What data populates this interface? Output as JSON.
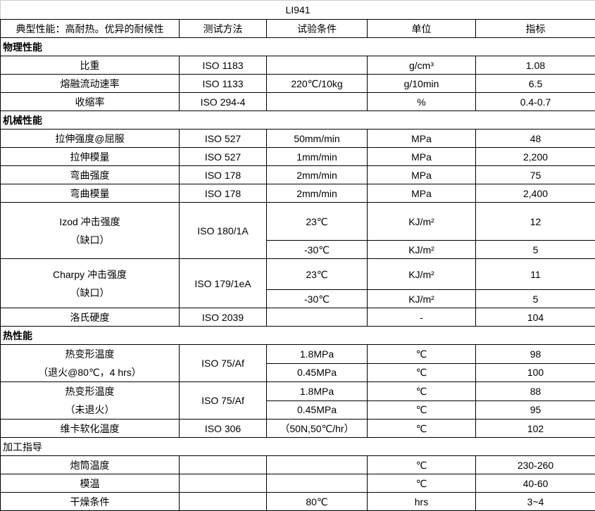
{
  "title": "LI941",
  "header": [
    "典型性能：高耐热。优异的耐候性",
    "测试方法",
    "试验条件",
    "单位",
    "指标"
  ],
  "sections": [
    {
      "name": "物理性能",
      "bold": true,
      "rows": [
        {
          "property": [
            "比重"
          ],
          "method": "ISO 1183",
          "sub": [
            {
              "condition": "",
              "unit": "g/cm³",
              "value": "1.08"
            }
          ]
        },
        {
          "property": [
            "熔融流动速率"
          ],
          "method": "ISO 1133",
          "sub": [
            {
              "condition": "220℃/10kg",
              "unit": "g/10min",
              "value": "6.5"
            }
          ]
        },
        {
          "property": [
            "收缩率"
          ],
          "method": "ISO 294-4",
          "sub": [
            {
              "condition": "",
              "unit": "%",
              "value": "0.4-0.7"
            }
          ]
        }
      ]
    },
    {
      "name": "机械性能",
      "bold": true,
      "rows": [
        {
          "property": [
            "拉伸强度@屈服"
          ],
          "method": "ISO 527",
          "sub": [
            {
              "condition": "50mm/min",
              "unit": "MPa",
              "value": "48"
            }
          ]
        },
        {
          "property": [
            "拉伸模量"
          ],
          "method": "ISO 527",
          "sub": [
            {
              "condition": "1mm/min",
              "unit": "MPa",
              "value": "2,200"
            }
          ]
        },
        {
          "property": [
            "弯曲强度"
          ],
          "method": "ISO 178",
          "sub": [
            {
              "condition": "2mm/min",
              "unit": "MPa",
              "value": "75"
            }
          ]
        },
        {
          "property": [
            "弯曲模量"
          ],
          "method": "ISO 178",
          "sub": [
            {
              "condition": "2mm/min",
              "unit": "MPa",
              "value": "2,400"
            }
          ]
        },
        {
          "property": [
            "Izod 冲击强度",
            "（缺口）"
          ],
          "method": "ISO 180/1A",
          "sub": [
            {
              "condition": "23℃",
              "unit": "KJ/m²",
              "value": "12"
            },
            {
              "condition": "-30℃",
              "unit": "KJ/m²",
              "value": "5"
            }
          ]
        },
        {
          "property": [
            "Charpy 冲击强度",
            "（缺口）"
          ],
          "method": "ISO 179/1eA",
          "sub": [
            {
              "condition": "23℃",
              "unit": "KJ/m²",
              "value": "11"
            },
            {
              "condition": "-30℃",
              "unit": "KJ/m²",
              "value": "5"
            }
          ]
        },
        {
          "property": [
            "洛氏硬度"
          ],
          "method": "ISO 2039",
          "sub": [
            {
              "condition": "",
              "unit": "-",
              "value": "104"
            }
          ]
        }
      ]
    },
    {
      "name": "热性能",
      "bold": true,
      "rows": [
        {
          "property": [
            "热变形温度",
            "（退火@80℃，4 hrs）"
          ],
          "method": "ISO 75/Af",
          "sub": [
            {
              "condition": "1.8MPa",
              "unit": "℃",
              "value": "98"
            },
            {
              "condition": "0.45MPa",
              "unit": "℃",
              "value": "100"
            }
          ]
        },
        {
          "property": [
            "热变形温度",
            "（未退火）"
          ],
          "method": "ISO 75/Af",
          "sub": [
            {
              "condition": "1.8MPa",
              "unit": "℃",
              "value": "88"
            },
            {
              "condition": "0.45MPa",
              "unit": "℃",
              "value": "95"
            }
          ]
        },
        {
          "property": [
            "维卡软化温度"
          ],
          "method": "ISO 306",
          "sub": [
            {
              "condition": "（50N,50℃/hr）",
              "unit": "℃",
              "value": "102"
            }
          ]
        }
      ]
    },
    {
      "name": "加工指导",
      "bold": false,
      "rows": [
        {
          "property": [
            "炮筒温度"
          ],
          "method": "",
          "sub": [
            {
              "condition": "",
              "unit": "℃",
              "value": "230-260"
            }
          ]
        },
        {
          "property": [
            "模温"
          ],
          "method": "",
          "sub": [
            {
              "condition": "",
              "unit": "℃",
              "value": "40-60"
            }
          ]
        },
        {
          "property": [
            "干燥条件"
          ],
          "method": "",
          "sub": [
            {
              "condition": "80℃",
              "unit": "hrs",
              "value": "3~4"
            }
          ]
        }
      ]
    }
  ]
}
